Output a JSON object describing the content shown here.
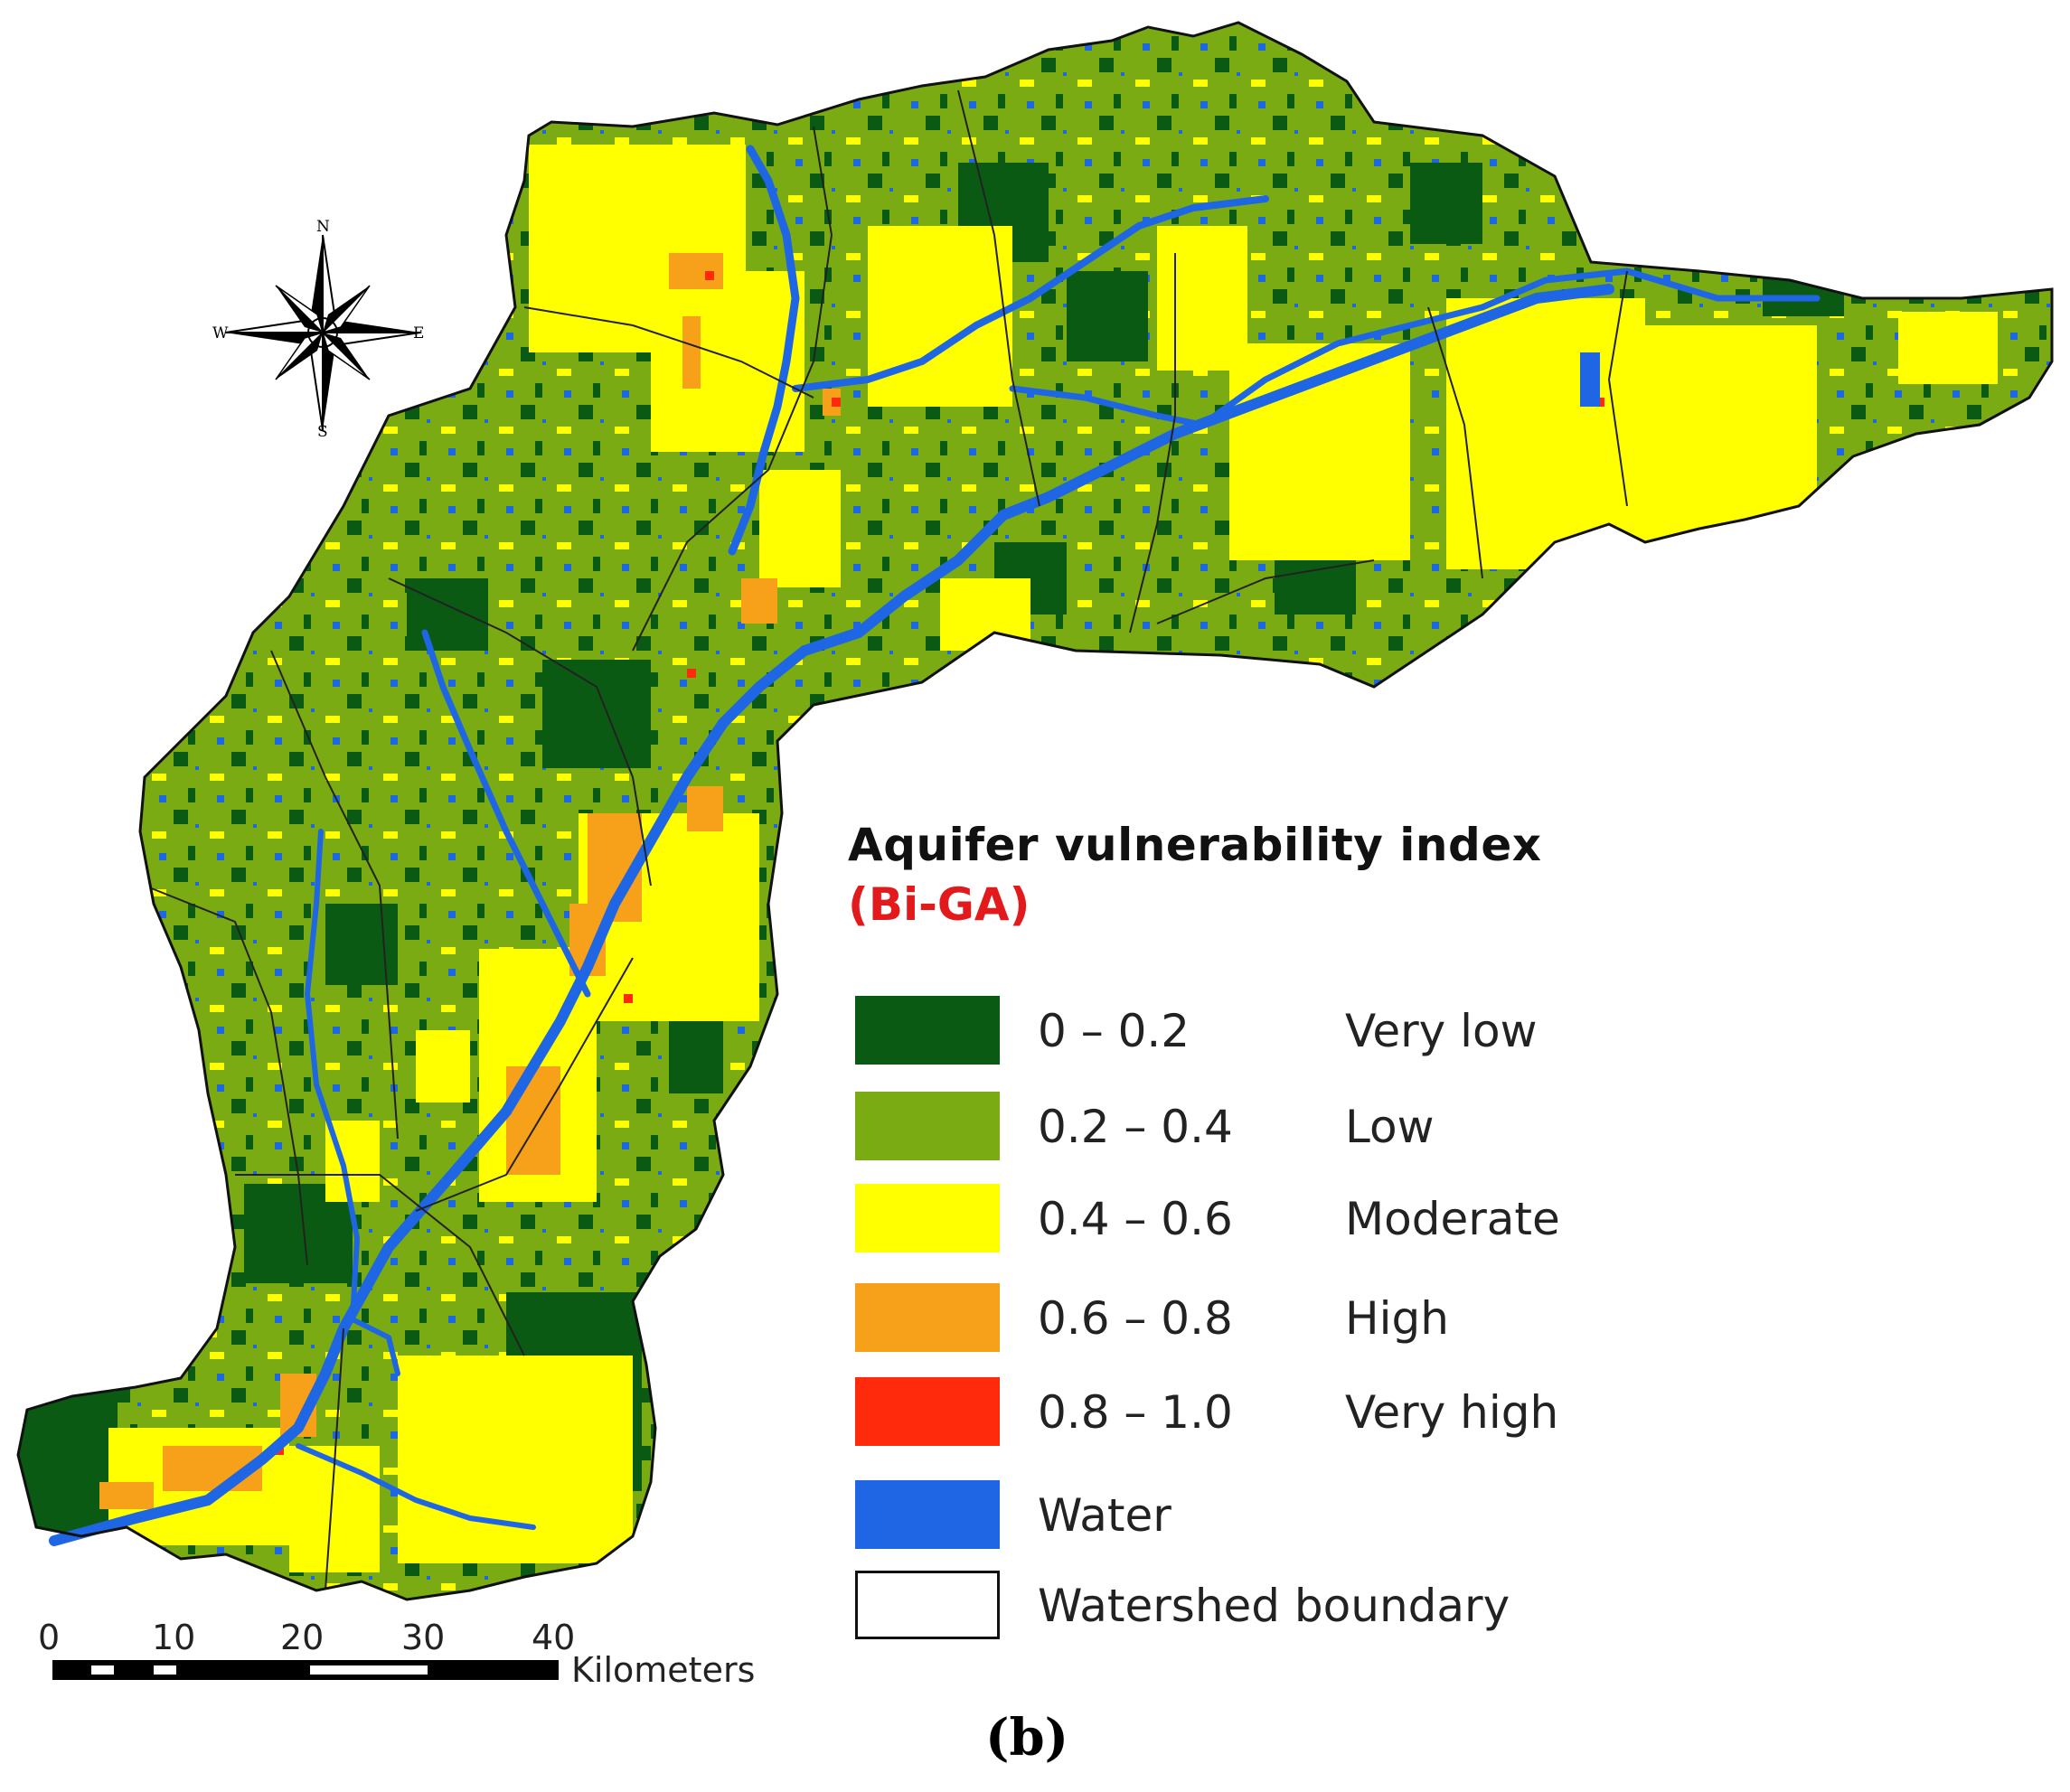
{
  "map": {
    "compass": {
      "north": "N",
      "south": "S",
      "east": "E",
      "west": "W"
    }
  },
  "legend": {
    "title": "Aquifer vulnerability index",
    "subtitle": "(Bi-GA)",
    "classes": [
      {
        "range": "0 – 0.2",
        "label": "Very low",
        "color": "#0b5a13"
      },
      {
        "range": "0.2 – 0.4",
        "label": "Low",
        "color": "#7aab12"
      },
      {
        "range": "0.4 – 0.6",
        "label": "Moderate",
        "color": "#ffff00"
      },
      {
        "range": "0.6 – 0.8",
        "label": "High",
        "color": "#f7a01a"
      },
      {
        "range": "0.8 – 1.0",
        "label": "Very high",
        "color": "#ff2a0c"
      }
    ],
    "water": {
      "label": "Water",
      "color": "#1f66e5"
    },
    "boundary": {
      "label": "Watershed boundary"
    }
  },
  "scale_bar": {
    "ticks": [
      "0",
      "10",
      "20",
      "30",
      "40"
    ],
    "unit": "Kilometers"
  },
  "panel_label": "(b)"
}
